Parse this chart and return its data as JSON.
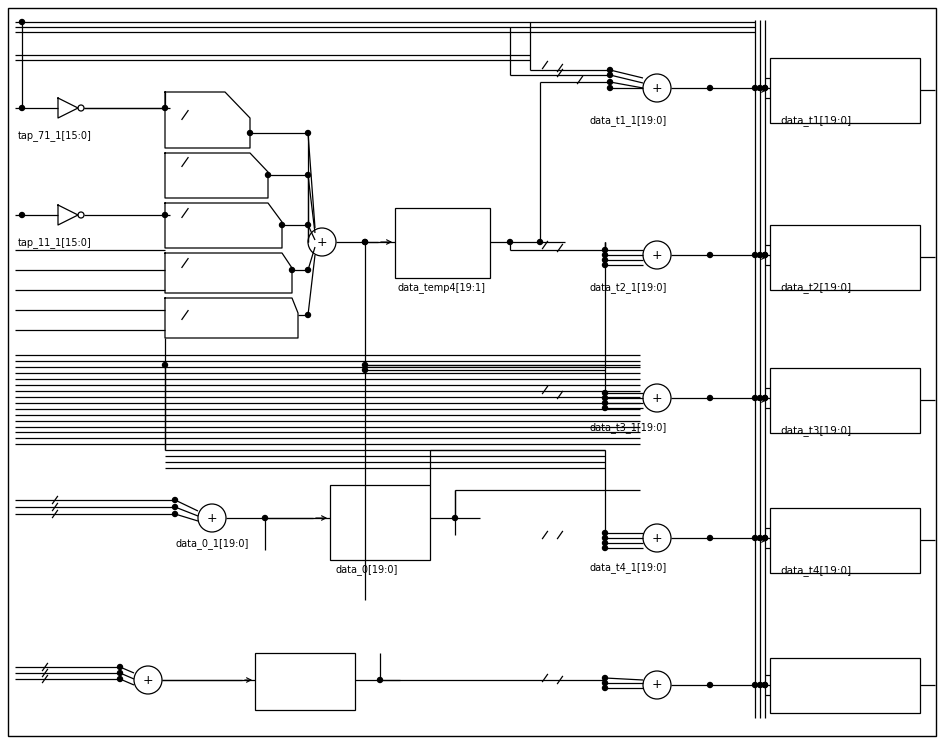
{
  "bg_color": "#ffffff",
  "line_color": "#000000",
  "fig_width": 9.44,
  "fig_height": 7.44,
  "dpi": 100,
  "labels": {
    "tap_71_1": "tap_71_1[15:0]",
    "tap_11_1": "tap_11_1[15:0]",
    "data_temp4": "data_temp4[19:1]",
    "data_t1_1": "data_t1_1[19:0]",
    "data_t2_1": "data_t2_1[19:0]",
    "data_t3_1": "data_t3_1[19:0]",
    "data_t4_1": "data_t4_1[19:0]",
    "data_0_1": "data_0_1[19:0]",
    "data_0": "data_0[19:0]",
    "data_t1": "data_t1[19:0]",
    "data_t2": "data_t2[19:0]",
    "data_t3": "data_t3[19:0]",
    "data_t4": "data_t4[19:0]"
  }
}
